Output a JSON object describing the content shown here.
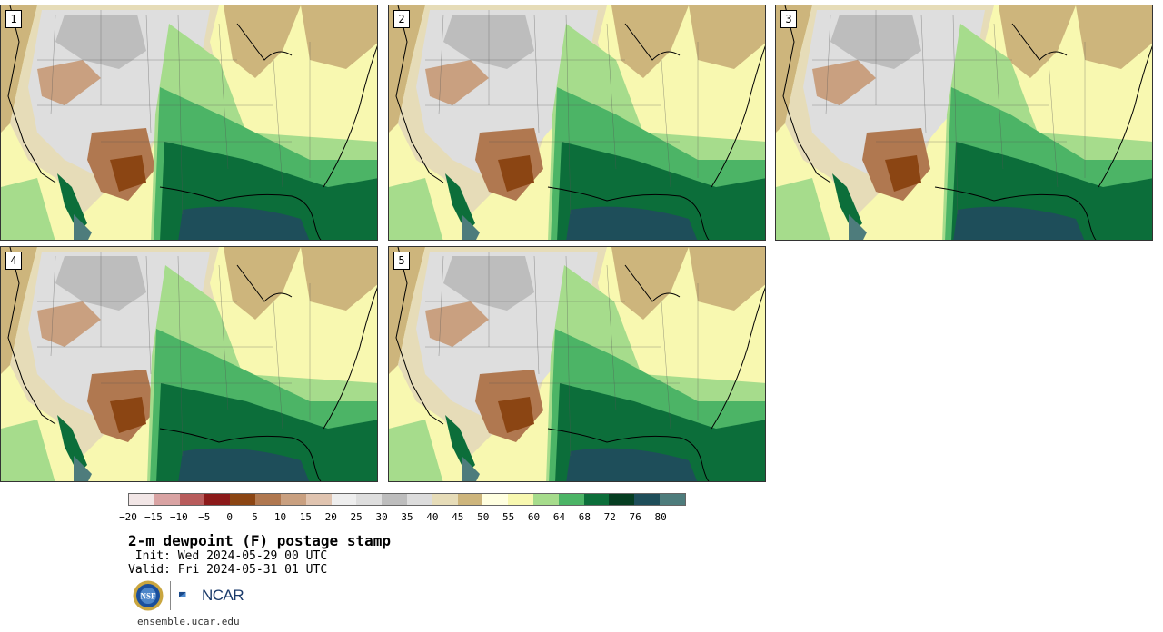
{
  "panels": [
    {
      "label": "1"
    },
    {
      "label": "2"
    },
    {
      "label": "3"
    },
    {
      "label": "4"
    },
    {
      "label": "5"
    }
  ],
  "colorbar": {
    "colors": [
      "#f2e6e6",
      "#d9a3a3",
      "#b85c5c",
      "#8c1a1a",
      "#8b4513",
      "#b07850",
      "#c9a080",
      "#e0c4b0",
      "#eeeeee",
      "#dedede",
      "#bdbdbd",
      "#dcdcdc",
      "#e6dcb8",
      "#cdb57c",
      "#ffffe0",
      "#f8f8b0",
      "#a6dc8c",
      "#4cb466",
      "#0c6e3a",
      "#063e22",
      "#1e4e5a",
      "#4e7c7c"
    ],
    "tick_labels": [
      "−20",
      "−15",
      "−10",
      "−5",
      "0",
      "5",
      "10",
      "15",
      "20",
      "25",
      "30",
      "35",
      "40",
      "45",
      "50",
      "55",
      "60",
      "64",
      "68",
      "72",
      "76",
      "80"
    ]
  },
  "title": "2-m dewpoint (F) postage stamp",
  "init_text": " Init: Wed 2024-05-29 00 UTC",
  "valid_text": "Valid: Fri 2024-05-31 01 UTC",
  "logos": {
    "nsf_text": "NSF",
    "ncar_text": "NCAR"
  },
  "footer": "ensemble.ucar.edu"
}
